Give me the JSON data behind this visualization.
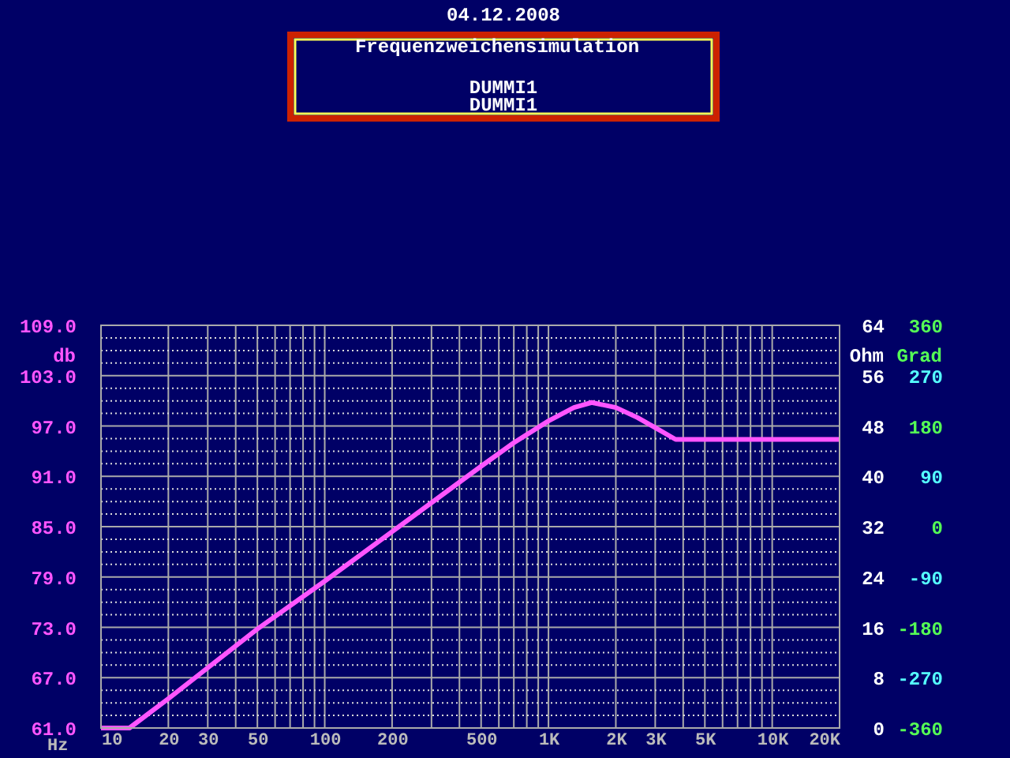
{
  "chart_data": {
    "type": "line",
    "title": "Frequenzweichensimulation",
    "subtitle": "DUMMI1",
    "annotations": [
      "04.12.2008",
      "DUMMI1"
    ],
    "xlabel": "Hz",
    "ylabel": "db",
    "y2label": "Ohm",
    "y3label": "Grad",
    "log": "x",
    "x": [
      10,
      13.4,
      20,
      50,
      100,
      200,
      500,
      700,
      1000,
      1300,
      1560,
      2000,
      2500,
      3000,
      3700,
      20000
    ],
    "series": [
      {
        "color": "#ff55ff",
        "values": [
          61,
          61,
          64.5,
          72.8,
          78.5,
          84.4,
          92.2,
          95.0,
          97.6,
          99.2,
          99.8,
          99.2,
          98.0,
          96.8,
          95.4,
          95.4
        ]
      }
    ],
    "xlim": [
      10,
      20000
    ],
    "xticks": [
      10,
      20,
      30,
      {
        "value": 40,
        "label": null
      },
      50,
      {
        "value": 60,
        "label": null
      },
      {
        "value": 70,
        "label": null
      },
      {
        "value": 80,
        "label": null
      },
      {
        "value": 90,
        "label": null
      },
      100,
      200,
      {
        "value": 300,
        "label": null
      },
      {
        "value": 400,
        "label": null
      },
      500,
      {
        "value": 600,
        "label": null
      },
      {
        "value": 700,
        "label": null
      },
      {
        "value": 800,
        "label": null
      },
      {
        "value": 900,
        "label": null
      },
      {
        "value": 1000,
        "label": "1K"
      },
      {
        "value": 2000,
        "label": "2K"
      },
      {
        "value": 3000,
        "label": "3K"
      },
      {
        "value": 4000,
        "label": null
      },
      {
        "value": 5000,
        "label": "5K"
      },
      {
        "value": 6000,
        "label": null
      },
      {
        "value": 7000,
        "label": null
      },
      {
        "value": 8000,
        "label": null
      },
      {
        "value": 9000,
        "label": null
      },
      {
        "value": 10000,
        "label": "10K"
      },
      {
        "value": 20000,
        "label": "20K"
      }
    ],
    "ylim": [
      61,
      109
    ],
    "yticks": [
      {
        "value": 61,
        "label": "61.0"
      },
      {
        "value": 62.5,
        "label": null
      },
      {
        "value": 64,
        "label": null
      },
      {
        "value": 65.5,
        "label": null
      },
      {
        "value": 67,
        "label": "67.0"
      },
      {
        "value": 68.5,
        "label": null
      },
      {
        "value": 70,
        "label": null
      },
      {
        "value": 71.5,
        "label": null
      },
      {
        "value": 73,
        "label": "73.0"
      },
      {
        "value": 74.5,
        "label": null
      },
      {
        "value": 76,
        "label": null
      },
      {
        "value": 77.5,
        "label": null
      },
      {
        "value": 79,
        "label": "79.0"
      },
      {
        "value": 80.5,
        "label": null
      },
      {
        "value": 82,
        "label": null
      },
      {
        "value": 83.5,
        "label": null
      },
      {
        "value": 85,
        "label": "85.0"
      },
      {
        "value": 86.5,
        "label": null
      },
      {
        "value": 88,
        "label": null
      },
      {
        "value": 89.5,
        "label": null
      },
      {
        "value": 91,
        "label": "91.0"
      },
      {
        "value": 92.5,
        "label": null
      },
      {
        "value": 94,
        "label": null
      },
      {
        "value": 95.5,
        "label": null
      },
      {
        "value": 97,
        "label": "97.0"
      },
      {
        "value": 98.5,
        "label": null
      },
      {
        "value": 100,
        "label": null
      },
      {
        "value": 101.5,
        "label": null
      },
      {
        "value": 103,
        "label": "103.0"
      },
      {
        "value": 104.5,
        "label": null
      },
      {
        "value": 106,
        "label": null
      },
      {
        "value": 107.5,
        "label": null
      },
      {
        "value": 109,
        "label": "109.0"
      }
    ],
    "y2lim": [
      0,
      64
    ],
    "y2ticks": [
      0,
      8,
      16,
      24,
      32,
      40,
      48,
      56,
      64
    ],
    "y3lim": [
      -360,
      360
    ],
    "y3ticks": [
      -360,
      -270,
      -180,
      -90,
      0,
      90,
      180,
      270,
      360
    ],
    "grid": true,
    "marker": "none",
    "line_style": "solid"
  }
}
